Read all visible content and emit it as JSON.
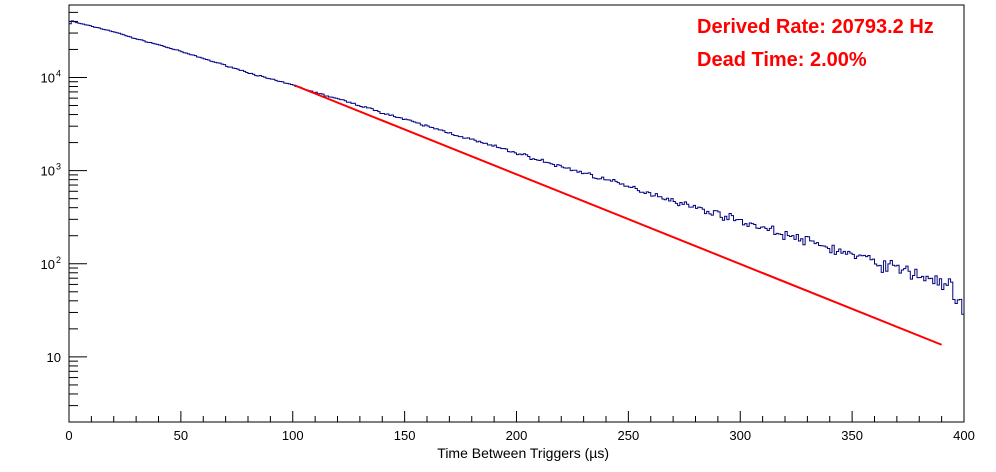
{
  "chart_data": {
    "type": "line",
    "title": "",
    "xlabel": "Time Between Triggers (µs)",
    "ylabel": "",
    "xlim": [
      0,
      400
    ],
    "ylim": [
      2,
      60000
    ],
    "yscale": "log",
    "grid": false,
    "legend": "none",
    "x_ticks": [
      "0",
      "50",
      "100",
      "150",
      "200",
      "250",
      "300",
      "350",
      "400"
    ],
    "y_ticks": [
      {
        "value": 10,
        "label": "10"
      },
      {
        "value": 100,
        "label": "10",
        "exp": "2"
      },
      {
        "value": 1000,
        "label": "10",
        "exp": "3"
      },
      {
        "value": 10000,
        "label": "10",
        "exp": "4"
      }
    ],
    "annotations": [
      "Derived Rate: 20793.2 Hz",
      "Dead Time: 2.00%"
    ],
    "series": [
      {
        "kind": "histogram",
        "color": "#000080",
        "bin_width": 1,
        "points": [
          [
            0,
            35000
          ],
          [
            1,
            41000
          ],
          [
            2,
            40000
          ],
          [
            3,
            39000
          ],
          [
            5,
            38000
          ],
          [
            10,
            35500
          ],
          [
            20,
            31000
          ],
          [
            30,
            26000
          ],
          [
            40,
            22500
          ],
          [
            50,
            19000
          ],
          [
            60,
            16000
          ],
          [
            70,
            13500
          ],
          [
            80,
            11300
          ],
          [
            90,
            9600
          ],
          [
            100,
            8300
          ],
          [
            110,
            6900
          ],
          [
            120,
            5900
          ],
          [
            130,
            5000
          ],
          [
            140,
            4200
          ],
          [
            150,
            3550
          ],
          [
            160,
            3000
          ],
          [
            170,
            2550
          ],
          [
            180,
            2150
          ],
          [
            190,
            1820
          ],
          [
            200,
            1550
          ],
          [
            210,
            1300
          ],
          [
            220,
            1100
          ],
          [
            230,
            950
          ],
          [
            240,
            800
          ],
          [
            250,
            670
          ],
          [
            260,
            570
          ],
          [
            270,
            480
          ],
          [
            280,
            400
          ],
          [
            290,
            345
          ],
          [
            300,
            290
          ],
          [
            310,
            245
          ],
          [
            320,
            205
          ],
          [
            330,
            175
          ],
          [
            340,
            148
          ],
          [
            350,
            125
          ],
          [
            360,
            105
          ],
          [
            370,
            90
          ],
          [
            380,
            75
          ],
          [
            390,
            64
          ],
          [
            395,
            55
          ],
          [
            397,
            30
          ],
          [
            399,
            45
          ],
          [
            400,
            20
          ]
        ]
      },
      {
        "kind": "fit",
        "color": "#ff0000",
        "x": [
          101,
          390
        ],
        "y": [
          8200,
          13.5
        ]
      }
    ]
  },
  "colors": {
    "histogram": "#000080",
    "fit": "#ff0000",
    "annotation": "#ff0000",
    "axis": "#000000"
  }
}
